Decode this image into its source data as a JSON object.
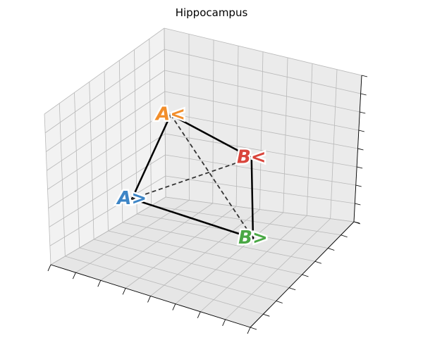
{
  "title": "Hippocampus",
  "chart_data": {
    "type": "network-3d",
    "title": "Hippocampus",
    "xlabel": "",
    "ylabel": "",
    "zlabel": "",
    "tick_labels": false,
    "grid": true,
    "nodes": [
      {
        "id": "A<",
        "label": "A<",
        "color": "#f28e2b",
        "x": 0.15,
        "y": 0.8,
        "z": 0.62
      },
      {
        "id": "B<",
        "label": "B<",
        "color": "#d9453c",
        "x": 0.7,
        "y": 0.55,
        "z": 0.65
      },
      {
        "id": "A>",
        "label": "A>",
        "color": "#3d85c6",
        "x": 0.3,
        "y": 0.2,
        "z": 0.45
      },
      {
        "id": "B>",
        "label": "B>",
        "color": "#4aa845",
        "x": 0.95,
        "y": 0.1,
        "z": 0.5
      }
    ],
    "edges": [
      {
        "source": "A<",
        "target": "B<",
        "style": "solid"
      },
      {
        "source": "B<",
        "target": "B>",
        "style": "solid"
      },
      {
        "source": "B>",
        "target": "A>",
        "style": "solid"
      },
      {
        "source": "A>",
        "target": "A<",
        "style": "solid"
      },
      {
        "source": "A<",
        "target": "B>",
        "style": "dashed"
      },
      {
        "source": "A>",
        "target": "B<",
        "style": "dashed"
      }
    ]
  }
}
